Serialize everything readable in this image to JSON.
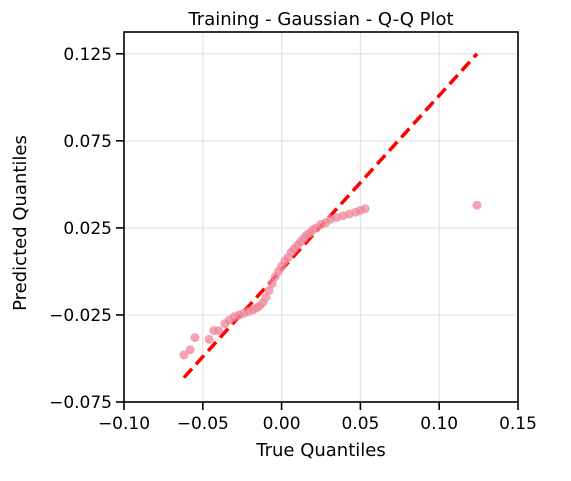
{
  "chart_data": {
    "type": "scatter",
    "title": "Training - Gaussian - Q-Q Plot",
    "xlabel": "True Quantiles",
    "ylabel": "Predicted Quantiles",
    "xlim": [
      -0.1,
      0.15
    ],
    "ylim": [
      -0.075,
      0.1375
    ],
    "xticks": [
      "−0.10",
      "−0.05",
      "0.00",
      "0.05",
      "0.10",
      "0.15"
    ],
    "xtick_values": [
      -0.1,
      -0.05,
      0.0,
      0.05,
      0.1,
      0.15
    ],
    "yticks": [
      "−0.075",
      "−0.025",
      "0.025",
      "0.075",
      "0.125"
    ],
    "ytick_values": [
      -0.075,
      -0.025,
      0.025,
      0.075,
      0.125
    ],
    "grid": true,
    "point_color": "#f0849a",
    "line_color": "#ff0000",
    "reference_line": {
      "x": [
        -0.062,
        0.124
      ],
      "y": [
        -0.061,
        0.125
      ],
      "style": "dashed"
    },
    "series": [
      {
        "x": [
          -0.062,
          -0.058,
          -0.055,
          -0.046,
          -0.043,
          -0.04,
          -0.036,
          -0.033,
          -0.03,
          -0.027,
          -0.024,
          -0.021,
          -0.018,
          -0.016,
          -0.014,
          -0.012,
          -0.01,
          -0.008,
          -0.006,
          -0.004,
          -0.002,
          0.0,
          0.002,
          0.004,
          0.006,
          0.008,
          0.01,
          0.012,
          0.014,
          0.016,
          0.018,
          0.02,
          0.022,
          0.025,
          0.028,
          0.031,
          0.035,
          0.039,
          0.043,
          0.047,
          0.05,
          0.053,
          0.124
        ],
        "y": [
          -0.048,
          -0.045,
          -0.038,
          -0.039,
          -0.034,
          -0.034,
          -0.03,
          -0.028,
          -0.026,
          -0.025,
          -0.024,
          -0.023,
          -0.022,
          -0.021,
          -0.02,
          -0.018,
          -0.015,
          -0.011,
          -0.007,
          -0.003,
          0.0,
          0.003,
          0.006,
          0.008,
          0.011,
          0.013,
          0.015,
          0.017,
          0.019,
          0.021,
          0.022,
          0.024,
          0.025,
          0.027,
          0.028,
          0.03,
          0.031,
          0.032,
          0.033,
          0.034,
          0.035,
          0.036,
          0.038
        ]
      }
    ]
  }
}
